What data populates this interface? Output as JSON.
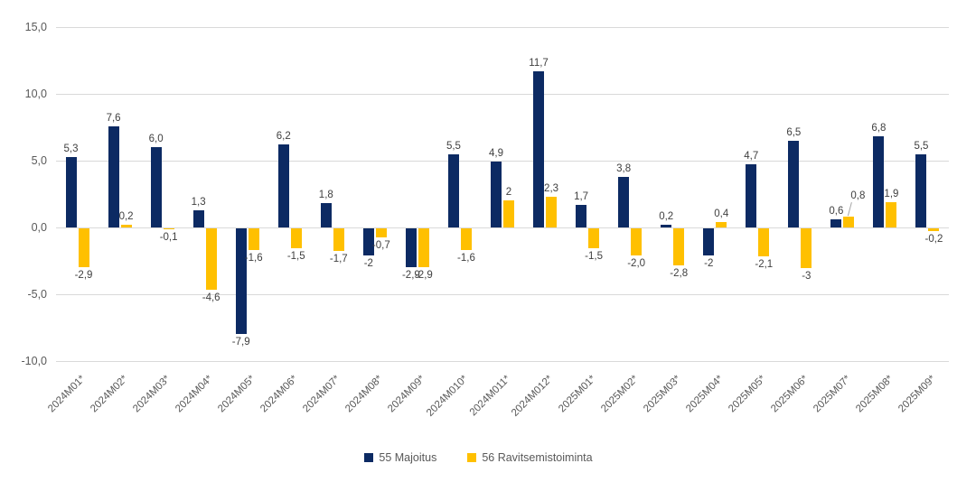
{
  "chart_data": {
    "type": "bar",
    "title": "",
    "categories": [
      "2024M01*",
      "2024M02*",
      "2024M03*",
      "2024M04*",
      "2024M05*",
      "2024M06*",
      "2024M07*",
      "2024M08*",
      "2024M09*",
      "2024M010*",
      "2024M011*",
      "2024M012*",
      "2025M01*",
      "2025M02*",
      "2025M03*",
      "2025M04*",
      "2025M05*",
      "2025M06*",
      "2025M07*",
      "2025M08*",
      "2025M09*"
    ],
    "series": [
      {
        "name": "55 Majoitus",
        "color": "#0c2a63",
        "values": [
          5.3,
          7.6,
          6.0,
          1.3,
          -7.9,
          6.2,
          1.8,
          -2,
          -2.9,
          5.5,
          4.9,
          11.7,
          1.7,
          3.8,
          0.2,
          -2,
          4.7,
          6.5,
          0.6,
          6.8,
          5.5
        ],
        "labels": [
          "5,3",
          "7,6",
          "6,0",
          "1,3",
          "-7,9",
          "6,2",
          "1,8",
          "-2",
          "-2,9",
          "5,5",
          "4,9",
          "11,7",
          "1,7",
          "3,8",
          "0,2",
          "-2",
          "4,7",
          "6,5",
          "0,6",
          "6,8",
          "5,5"
        ]
      },
      {
        "name": "56 Ravitsemistoiminta",
        "color": "#ffc000",
        "values": [
          -2.9,
          0.2,
          -0.1,
          -4.6,
          -1.6,
          -1.5,
          -1.7,
          -0.7,
          -2.9,
          -1.6,
          2,
          2.3,
          -1.5,
          -2.0,
          -2.8,
          0.4,
          -2.1,
          -3,
          0.8,
          1.9,
          -0.2
        ],
        "labels": [
          "-2,9",
          "0,2",
          "-0,1",
          "-4,6",
          "-1,6",
          "-1,5",
          "-1,7",
          "-0,7",
          "-2,9",
          "-1,6",
          "2",
          "2,3",
          "-1,5",
          "-2,0",
          "-2,8",
          "0,4",
          "-2,1",
          "-3",
          "0,8",
          "1,9",
          "-0,2"
        ]
      }
    ],
    "ylim": [
      -10,
      15
    ],
    "yticks": [
      {
        "v": 15,
        "label": "15,0"
      },
      {
        "v": 10,
        "label": "10,0"
      },
      {
        "v": 5,
        "label": "5,0"
      },
      {
        "v": 0,
        "label": "0,0"
      },
      {
        "v": -5,
        "label": "-5,0"
      },
      {
        "v": -10,
        "label": "-10,0"
      }
    ],
    "grid": true,
    "legend_position": "bottom",
    "callout": {
      "series": 1,
      "index": 18,
      "dx": 10,
      "dy": -14,
      "leader_color": "#a6a6a6"
    },
    "colors": {
      "gridline": "#d9d9d9",
      "axis_label": "#595959",
      "data_label": "#404040",
      "background": "#ffffff"
    }
  }
}
